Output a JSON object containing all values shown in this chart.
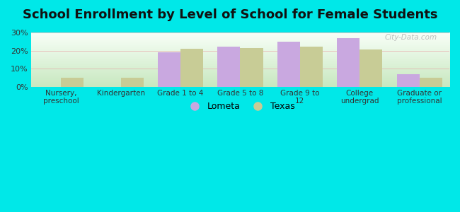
{
  "title": "School Enrollment by Level of School for Female Students",
  "categories": [
    "Nursery,\npreschool",
    "Kindergarten",
    "Grade 1 to 4",
    "Grade 5 to 8",
    "Grade 9 to\n12",
    "College\nundergrad",
    "Graduate or\nprofessional"
  ],
  "lometa": [
    0,
    0,
    19,
    22,
    25,
    27,
    7
  ],
  "texas": [
    5,
    5,
    21,
    21.5,
    22,
    20.5,
    5
  ],
  "lometa_color": "#c9a8e0",
  "texas_color": "#c8cc96",
  "background_outer": "#00e8e8",
  "ylim": [
    0,
    30
  ],
  "yticks": [
    0,
    10,
    20,
    30
  ],
  "ytick_labels": [
    "0%",
    "10%",
    "20%",
    "30%"
  ],
  "title_fontsize": 13,
  "legend_labels": [
    "Lometa",
    "Texas"
  ],
  "bar_width": 0.38,
  "watermark": "City-Data.com"
}
